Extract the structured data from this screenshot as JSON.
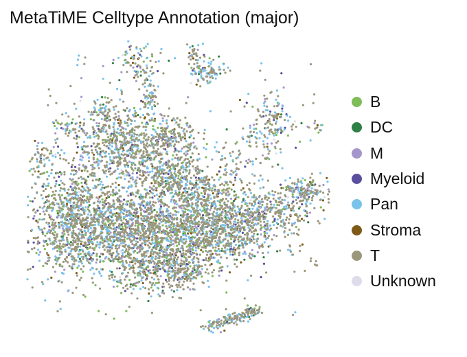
{
  "chart_data": {
    "type": "scatter",
    "title": "MetaTiME Celltype Annotation (major)",
    "xlabel": "",
    "ylabel": "",
    "axes_visible": false,
    "grid": false,
    "legend_position": "right",
    "legend_marker": "circle",
    "series": [
      {
        "name": "B",
        "color": "#7fbc5a"
      },
      {
        "name": "DC",
        "color": "#2e8046"
      },
      {
        "name": "M",
        "color": "#a496cc"
      },
      {
        "name": "Myeloid",
        "color": "#5a4e9e"
      },
      {
        "name": "Pan",
        "color": "#79c2ea"
      },
      {
        "name": "Stroma",
        "color": "#7f5a17"
      },
      {
        "name": "T",
        "color": "#9b977c"
      },
      {
        "name": "Unknown",
        "color": "#dedcec"
      }
    ],
    "series_weights": [
      0.09,
      0.03,
      0.07,
      0.05,
      0.22,
      0.04,
      0.48,
      0.02
    ]
  }
}
